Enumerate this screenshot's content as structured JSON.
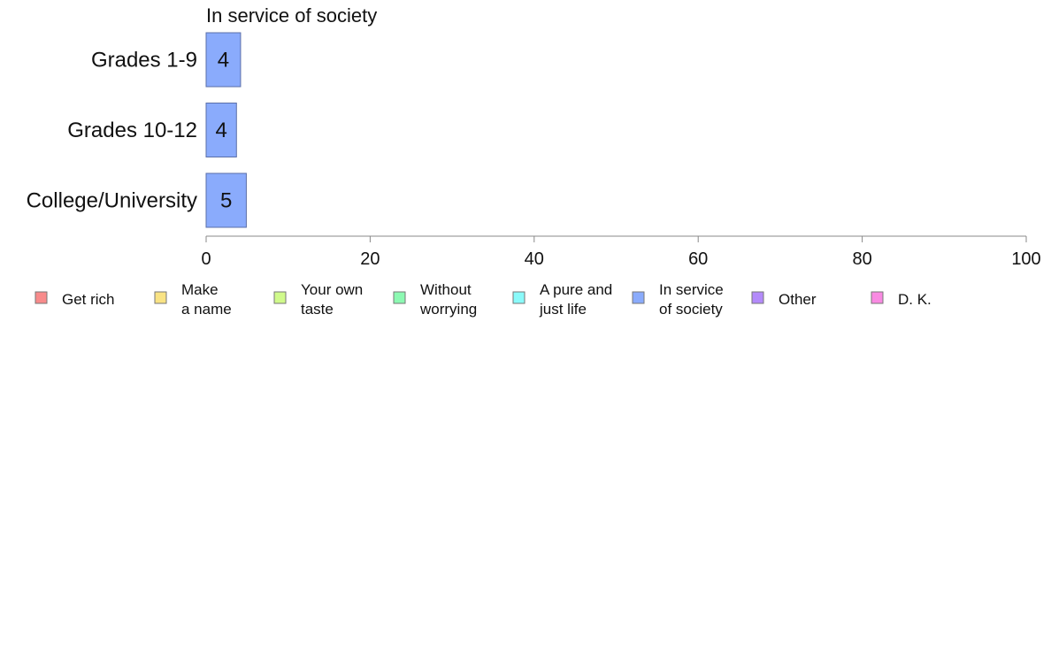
{
  "chart_data": {
    "type": "bar",
    "orientation": "horizontal",
    "title": "In service of society",
    "categories": [
      "Grades 1-9",
      "Grades 10-12",
      "College/University"
    ],
    "series": [
      {
        "name": "In service of society",
        "values": [
          4.2,
          3.7,
          4.9
        ],
        "labels": [
          "4",
          "4",
          "5"
        ],
        "color": "#8aabfc"
      }
    ],
    "xlim": [
      0,
      100
    ],
    "xticks": [
      0,
      20,
      40,
      60,
      80,
      100
    ],
    "grid": false,
    "legend_position": "bottom",
    "legend": [
      {
        "lines": [
          "Get rich"
        ],
        "color": "#f88b8b"
      },
      {
        "lines": [
          "Make",
          "a name"
        ],
        "color": "#f9e384"
      },
      {
        "lines": [
          "Your own",
          "taste"
        ],
        "color": "#d0fa8b"
      },
      {
        "lines": [
          "Without",
          "worrying"
        ],
        "color": "#8cf9b2"
      },
      {
        "lines": [
          "A pure and",
          "just life"
        ],
        "color": "#8afafa"
      },
      {
        "lines": [
          "In service",
          "of society"
        ],
        "color": "#8aabfc"
      },
      {
        "lines": [
          "Other"
        ],
        "color": "#b38afa"
      },
      {
        "lines": [
          "D. K."
        ],
        "color": "#f98ae2"
      }
    ]
  }
}
